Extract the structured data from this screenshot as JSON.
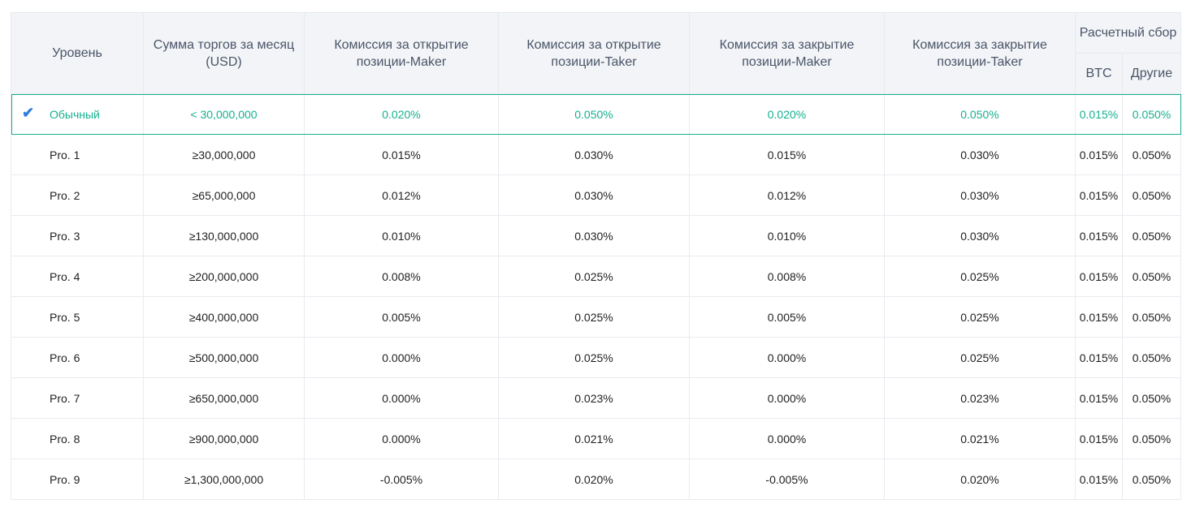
{
  "colors": {
    "accent": "#14b08e",
    "check": "#2f7de1",
    "header_bg": "#f2f4f7"
  },
  "headers": {
    "level": "Уровень",
    "volume": "Сумма торгов за месяц (USD)",
    "open_maker": "Комиссия за открытие позиции-Maker",
    "open_taker": "Комиссия за открытие позиции-Taker",
    "close_maker": "Комиссия за закрытие позиции-Maker",
    "close_taker": "Комиссия за закрытие позиции-Taker",
    "settlement": "Расчетный сбор",
    "btc": "BTC",
    "other": "Другие"
  },
  "current_level_icon": "checkmark-icon",
  "rows": [
    {
      "level": "Обычный",
      "volume": "< 30,000,000",
      "open_maker": "0.020%",
      "open_taker": "0.050%",
      "close_maker": "0.020%",
      "close_taker": "0.050%",
      "btc": "0.015%",
      "other": "0.050%",
      "current": true
    },
    {
      "level": "Pro. 1",
      "volume": "≥30,000,000",
      "open_maker": "0.015%",
      "open_taker": "0.030%",
      "close_maker": "0.015%",
      "close_taker": "0.030%",
      "btc": "0.015%",
      "other": "0.050%"
    },
    {
      "level": "Pro. 2",
      "volume": "≥65,000,000",
      "open_maker": "0.012%",
      "open_taker": "0.030%",
      "close_maker": "0.012%",
      "close_taker": "0.030%",
      "btc": "0.015%",
      "other": "0.050%"
    },
    {
      "level": "Pro. 3",
      "volume": "≥130,000,000",
      "open_maker": "0.010%",
      "open_taker": "0.030%",
      "close_maker": "0.010%",
      "close_taker": "0.030%",
      "btc": "0.015%",
      "other": "0.050%"
    },
    {
      "level": "Pro. 4",
      "volume": "≥200,000,000",
      "open_maker": "0.008%",
      "open_taker": "0.025%",
      "close_maker": "0.008%",
      "close_taker": "0.025%",
      "btc": "0.015%",
      "other": "0.050%"
    },
    {
      "level": "Pro. 5",
      "volume": "≥400,000,000",
      "open_maker": "0.005%",
      "open_taker": "0.025%",
      "close_maker": "0.005%",
      "close_taker": "0.025%",
      "btc": "0.015%",
      "other": "0.050%"
    },
    {
      "level": "Pro. 6",
      "volume": "≥500,000,000",
      "open_maker": "0.000%",
      "open_taker": "0.025%",
      "close_maker": "0.000%",
      "close_taker": "0.025%",
      "btc": "0.015%",
      "other": "0.050%"
    },
    {
      "level": "Pro. 7",
      "volume": "≥650,000,000",
      "open_maker": "0.000%",
      "open_taker": "0.023%",
      "close_maker": "0.000%",
      "close_taker": "0.023%",
      "btc": "0.015%",
      "other": "0.050%"
    },
    {
      "level": "Pro. 8",
      "volume": "≥900,000,000",
      "open_maker": "0.000%",
      "open_taker": "0.021%",
      "close_maker": "0.000%",
      "close_taker": "0.021%",
      "btc": "0.015%",
      "other": "0.050%"
    },
    {
      "level": "Pro. 9",
      "volume": "≥1,300,000,000",
      "open_maker": "-0.005%",
      "open_taker": "0.020%",
      "close_maker": "-0.005%",
      "close_taker": "0.020%",
      "btc": "0.015%",
      "other": "0.050%"
    }
  ]
}
